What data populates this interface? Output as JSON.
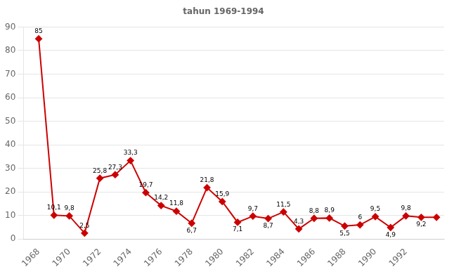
{
  "chart_data": {
    "type": "line",
    "title": "tahun 1969-1994",
    "x": [
      1968,
      1969,
      1970,
      1971,
      1972,
      1973,
      1974,
      1975,
      1976,
      1977,
      1978,
      1979,
      1980,
      1981,
      1982,
      1983,
      1984,
      1985,
      1986,
      1987,
      1988,
      1989,
      1990,
      1991,
      1992,
      1993,
      1994
    ],
    "values": [
      85,
      10.1,
      9.8,
      2.5,
      25.8,
      27.3,
      33.3,
      19.7,
      14.2,
      11.8,
      6.7,
      21.8,
      15.9,
      7.1,
      9.7,
      8.7,
      11.5,
      4.3,
      8.8,
      8.9,
      5.5,
      6.0,
      9.5,
      4.9,
      9.8,
      9.2,
      9.2
    ],
    "value_labels": [
      "85",
      "10,1",
      "9,8",
      "2,5",
      "25,8",
      "27,3",
      "33,3",
      "19,7",
      "14,2",
      "11,8",
      "6,7",
      "21,8",
      "15,9",
      "7,1",
      "9,7",
      "8,7",
      "11,5",
      "4,3",
      "8,8",
      "8,9",
      "5,5",
      "6",
      "9,5",
      "4,9",
      "9,8",
      "9,2",
      null
    ],
    "color": "#cc0000",
    "marker": "diamond",
    "xlim": [
      1967.0,
      1994.5
    ],
    "ylim": [
      0,
      90
    ],
    "xticks": [
      1968,
      1970,
      1972,
      1974,
      1976,
      1978,
      1980,
      1982,
      1984,
      1986,
      1988,
      1990,
      1992
    ],
    "yticks": [
      0,
      10,
      20,
      30,
      40,
      50,
      60,
      70,
      80,
      90
    ],
    "grid": "y",
    "data_labels": true
  }
}
